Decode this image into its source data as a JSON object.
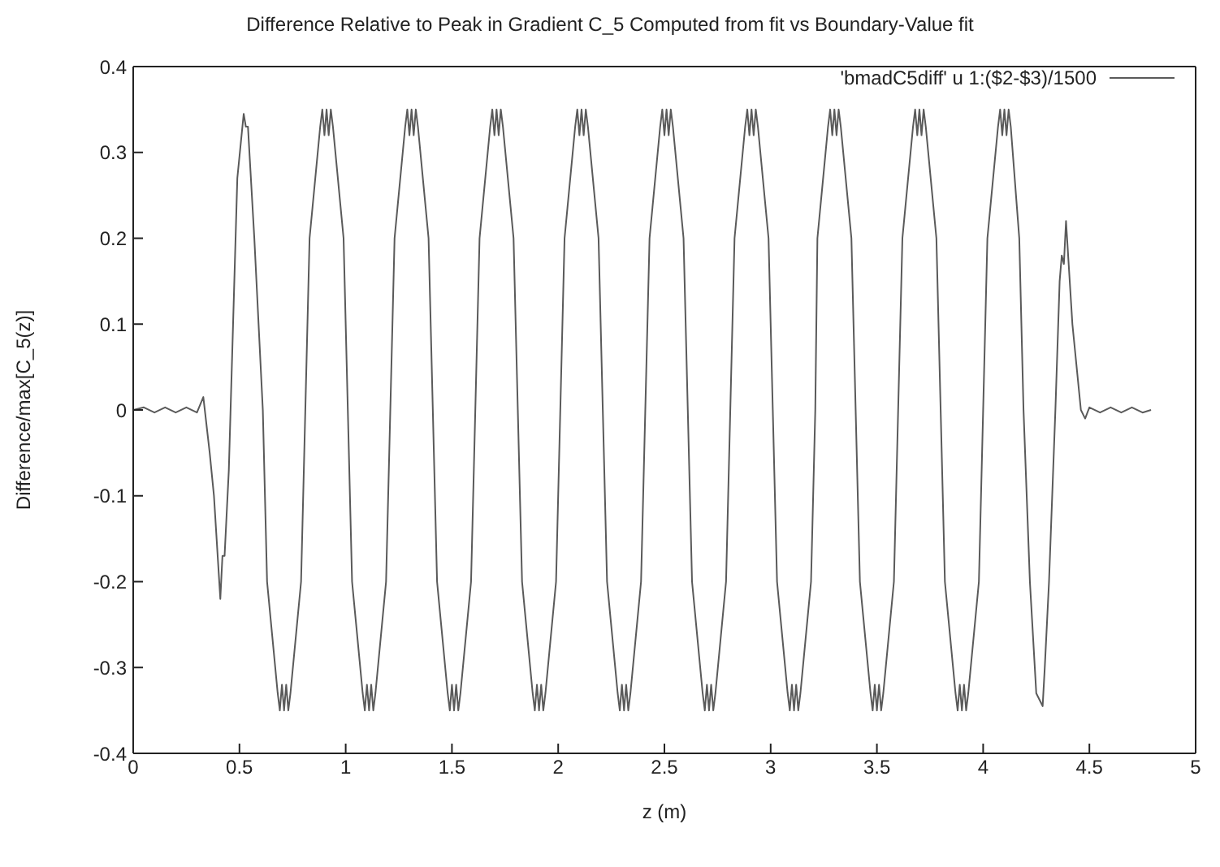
{
  "chart_data": {
    "type": "line",
    "title": "Difference Relative to Peak in Gradient C_5 Computed from fit vs Boundary-Value fit",
    "xlabel": "z (m)",
    "ylabel": "Difference/max[C_5(z)]",
    "xlim": [
      0,
      5
    ],
    "xticks": [
      0,
      0.5,
      1,
      1.5,
      2,
      2.5,
      3,
      3.5,
      4,
      4.5,
      5
    ],
    "ylim": [
      -0.4,
      0.4
    ],
    "yticks": [
      -0.4,
      -0.3,
      -0.2,
      -0.1,
      0,
      0.1,
      0.2,
      0.3,
      0.4
    ],
    "grid": false,
    "legend": "top right",
    "marker": "none",
    "line_style": "solid",
    "x": [
      0,
      0.05,
      0.1,
      0.15,
      0.2,
      0.25,
      0.3,
      0.33,
      0.36,
      0.38,
      0.41,
      0.42,
      0.43,
      0.45,
      0.47,
      0.49,
      0.52,
      0.53,
      0.54,
      0.57,
      0.61,
      0.63,
      0.68,
      0.69,
      0.7,
      0.71,
      0.72,
      0.73,
      0.74,
      0.79,
      0.81,
      0.83,
      0.88,
      0.89,
      0.9,
      0.91,
      0.92,
      0.93,
      0.94,
      0.99,
      1.01,
      1.03,
      1.08,
      1.09,
      1.1,
      1.11,
      1.12,
      1.13,
      1.14,
      1.19,
      1.21,
      1.23,
      1.28,
      1.29,
      1.3,
      1.31,
      1.32,
      1.33,
      1.34,
      1.39,
      1.41,
      1.43,
      1.48,
      1.49,
      1.5,
      1.51,
      1.52,
      1.53,
      1.54,
      1.59,
      1.61,
      1.63,
      1.68,
      1.69,
      1.7,
      1.71,
      1.72,
      1.73,
      1.74,
      1.79,
      1.81,
      1.83,
      1.88,
      1.89,
      1.9,
      1.91,
      1.92,
      1.93,
      1.94,
      1.99,
      2.01,
      2.03,
      2.08,
      2.09,
      2.1,
      2.11,
      2.12,
      2.13,
      2.14,
      2.19,
      2.21,
      2.23,
      2.28,
      2.29,
      2.3,
      2.31,
      2.32,
      2.33,
      2.34,
      2.39,
      2.41,
      2.43,
      2.48,
      2.49,
      2.5,
      2.51,
      2.52,
      2.53,
      2.54,
      2.59,
      2.61,
      2.63,
      2.68,
      2.69,
      2.7,
      2.71,
      2.72,
      2.73,
      2.74,
      2.79,
      2.81,
      2.83,
      2.88,
      2.89,
      2.9,
      2.91,
      2.92,
      2.93,
      2.94,
      2.99,
      3.01,
      3.03,
      3.08,
      3.09,
      3.1,
      3.11,
      3.12,
      3.13,
      3.14,
      3.19,
      3.21,
      3.22,
      3.27,
      3.28,
      3.29,
      3.3,
      3.31,
      3.32,
      3.33,
      3.38,
      3.4,
      3.42,
      3.47,
      3.48,
      3.49,
      3.5,
      3.51,
      3.52,
      3.53,
      3.58,
      3.6,
      3.62,
      3.67,
      3.68,
      3.69,
      3.7,
      3.71,
      3.72,
      3.73,
      3.78,
      3.8,
      3.82,
      3.87,
      3.88,
      3.89,
      3.9,
      3.91,
      3.92,
      3.93,
      3.98,
      4.0,
      4.02,
      4.07,
      4.08,
      4.09,
      4.1,
      4.11,
      4.12,
      4.13,
      4.17,
      4.19,
      4.22,
      4.25,
      4.27,
      4.28,
      4.29,
      4.31,
      4.34,
      4.36,
      4.37,
      4.38,
      4.39,
      4.42,
      4.46,
      4.48,
      4.5,
      4.55,
      4.6,
      4.65,
      4.7,
      4.75,
      4.79
    ],
    "series": [
      {
        "name": "'bmadC5diff' u 1:($2-$3)/1500",
        "color": "#5a5a5a",
        "values": [
          0,
          0.003,
          -0.003,
          0.003,
          -0.003,
          0.003,
          -0.003,
          0.015,
          -0.05,
          -0.1,
          -0.22,
          -0.17,
          -0.17,
          -0.07,
          0.1,
          0.27,
          0.345,
          0.33,
          0.33,
          0.2,
          0,
          -0.2,
          -0.33,
          -0.35,
          -0.32,
          -0.35,
          -0.32,
          -0.35,
          -0.33,
          -0.2,
          0,
          0.2,
          0.33,
          0.35,
          0.32,
          0.35,
          0.32,
          0.35,
          0.33,
          0.2,
          0,
          -0.2,
          -0.33,
          -0.35,
          -0.32,
          -0.35,
          -0.32,
          -0.35,
          -0.33,
          -0.2,
          0,
          0.2,
          0.33,
          0.35,
          0.32,
          0.35,
          0.32,
          0.35,
          0.33,
          0.2,
          0,
          -0.2,
          -0.33,
          -0.35,
          -0.32,
          -0.35,
          -0.32,
          -0.35,
          -0.33,
          -0.2,
          0,
          0.2,
          0.33,
          0.35,
          0.32,
          0.35,
          0.32,
          0.35,
          0.33,
          0.2,
          0,
          -0.2,
          -0.33,
          -0.35,
          -0.32,
          -0.35,
          -0.32,
          -0.35,
          -0.33,
          -0.2,
          0,
          0.2,
          0.33,
          0.35,
          0.32,
          0.35,
          0.32,
          0.35,
          0.33,
          0.2,
          0,
          -0.2,
          -0.33,
          -0.35,
          -0.32,
          -0.35,
          -0.32,
          -0.35,
          -0.33,
          -0.2,
          0,
          0.2,
          0.33,
          0.35,
          0.32,
          0.35,
          0.32,
          0.35,
          0.33,
          0.2,
          0,
          -0.2,
          -0.33,
          -0.35,
          -0.32,
          -0.35,
          -0.32,
          -0.35,
          -0.33,
          -0.2,
          0,
          0.2,
          0.33,
          0.35,
          0.32,
          0.35,
          0.32,
          0.35,
          0.33,
          0.2,
          0,
          -0.2,
          -0.33,
          -0.35,
          -0.32,
          -0.35,
          -0.32,
          -0.35,
          -0.33,
          -0.2,
          0,
          0.2,
          0.33,
          0.35,
          0.32,
          0.35,
          0.32,
          0.35,
          0.33,
          0.2,
          0,
          -0.2,
          -0.33,
          -0.35,
          -0.32,
          -0.35,
          -0.32,
          -0.35,
          -0.33,
          -0.2,
          0,
          0.2,
          0.33,
          0.35,
          0.32,
          0.35,
          0.32,
          0.35,
          0.33,
          0.2,
          0,
          -0.2,
          -0.33,
          -0.35,
          -0.32,
          -0.35,
          -0.32,
          -0.35,
          -0.33,
          -0.2,
          0,
          0.2,
          0.33,
          0.35,
          0.32,
          0.35,
          0.32,
          0.35,
          0.33,
          0.2,
          0,
          -0.2,
          -0.33,
          -0.34,
          -0.345,
          -0.3,
          -0.2,
          0,
          0.15,
          0.18,
          0.17,
          0.22,
          0.1,
          0,
          -0.01,
          0.003,
          -0.003,
          0.003,
          -0.003,
          0.003,
          -0.003,
          0
        ]
      }
    ]
  }
}
